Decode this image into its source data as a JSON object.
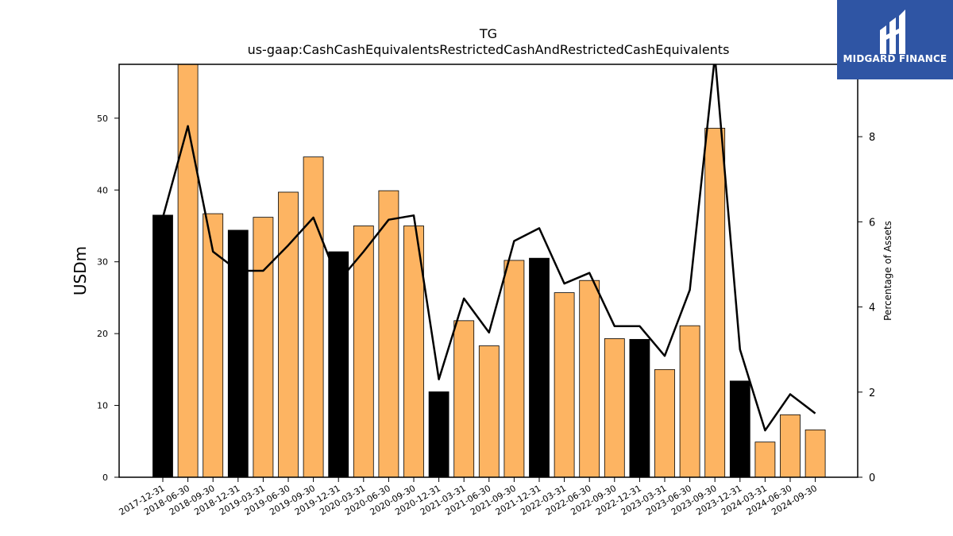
{
  "chart_data": {
    "type": "bar",
    "title": "TG",
    "subtitle": "us-gaap:CashCashEquivalentsRestrictedCashAndRestrictedCashEquivalents",
    "ylabel": "USDm",
    "y2label": "Percentage of Assets",
    "ylim": [
      0,
      57.5
    ],
    "y2lim": [
      0,
      9.7
    ],
    "yticks": [
      0,
      10,
      20,
      30,
      40,
      50
    ],
    "y2ticks": [
      0,
      2,
      4,
      6,
      8
    ],
    "categories": [
      "2017-12-31",
      "2018-06-30",
      "2018-09-30",
      "2018-12-31",
      "2019-03-31",
      "2019-06-30",
      "2019-09-30",
      "2019-12-31",
      "2020-03-31",
      "2020-06-30",
      "2020-09-30",
      "2020-12-31",
      "2021-03-31",
      "2021-06-30",
      "2021-09-30",
      "2021-12-31",
      "2022-03-31",
      "2022-06-30",
      "2022-09-30",
      "2022-12-31",
      "2023-03-31",
      "2023-06-30",
      "2023-09-30",
      "2023-12-31",
      "2024-03-31",
      "2024-06-30",
      "2024-09-30"
    ],
    "series": [
      {
        "values": [
          36.5,
          57.5,
          36.7,
          34.4,
          36.2,
          39.7,
          44.6,
          31.4,
          35.0,
          39.9,
          35.0,
          11.9,
          21.8,
          18.3,
          30.2,
          30.5,
          25.7,
          27.4,
          19.3,
          19.2,
          15.0,
          21.1,
          48.6,
          13.4,
          4.9,
          8.7,
          6.6
        ],
        "colors": [
          "#000000",
          "#fdb462",
          "#fdb462",
          "#000000",
          "#fdb462",
          "#fdb462",
          "#fdb462",
          "#000000",
          "#fdb462",
          "#fdb462",
          "#fdb462",
          "#000000",
          "#fdb462",
          "#fdb462",
          "#fdb462",
          "#000000",
          "#fdb462",
          "#fdb462",
          "#fdb462",
          "#000000",
          "#fdb462",
          "#fdb462",
          "#fdb462",
          "#000000",
          "#fdb462",
          "#fdb462",
          "#fdb462"
        ]
      },
      {
        "axis": "right",
        "type": "line",
        "color": "#000000",
        "values": [
          6.1,
          8.25,
          5.3,
          4.85,
          4.85,
          5.45,
          6.1,
          4.6,
          5.3,
          6.05,
          6.15,
          2.3,
          4.2,
          3.4,
          5.55,
          5.85,
          4.55,
          4.8,
          3.55,
          3.55,
          2.85,
          4.4,
          9.9,
          3.0,
          1.1,
          1.95,
          1.5
        ]
      }
    ]
  },
  "logo": {
    "text": "MIDGARD FINANCE",
    "background": "#2f55a4"
  }
}
